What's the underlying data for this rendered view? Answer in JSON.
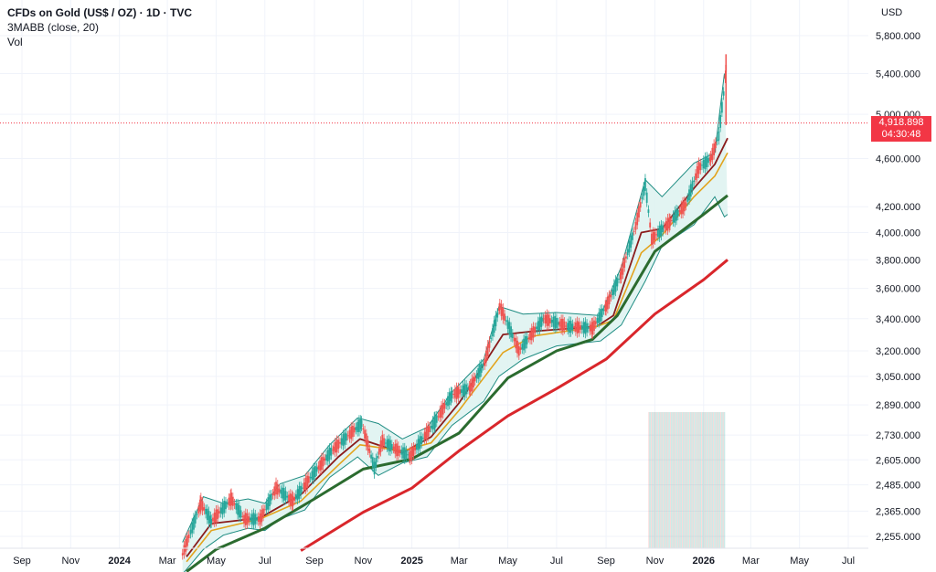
{
  "header": {
    "title": "CFDs on Gold (US$ / OZ) · 1D · TVC",
    "indicator": "3MABB (close, 20)",
    "volume_label": "Vol"
  },
  "currency": "USD",
  "current_price": {
    "value": "4,918.898",
    "countdown": "04:30:48"
  },
  "colors": {
    "price_line": "#f23645",
    "band_fill": "#dff3f1",
    "band_line": "#1e8c82",
    "ma_short": "#8a1c1c",
    "ma_mid": "#e2a31c",
    "ma_long": "#2b6b2f",
    "ma_longest": "#d9262b",
    "up_candle": "#26a69a",
    "down_candle": "#ef5350"
  },
  "chart_data": {
    "type": "line",
    "scale": "log",
    "ylim": [
      2200,
      6000
    ],
    "xlim": [
      "2023-08-15",
      "2026-07-31"
    ],
    "y_ticks": [
      {
        "value": 5800,
        "label": "5,800.000"
      },
      {
        "value": 5400,
        "label": "5,400.000"
      },
      {
        "value": 5000,
        "label": "5,000.000"
      },
      {
        "value": 4600,
        "label": "4,600.000"
      },
      {
        "value": 4200,
        "label": "4,200.000"
      },
      {
        "value": 4000,
        "label": "4,000.000"
      },
      {
        "value": 3800,
        "label": "3,800.000"
      },
      {
        "value": 3600,
        "label": "3,600.000"
      },
      {
        "value": 3400,
        "label": "3,400.000"
      },
      {
        "value": 3200,
        "label": "3,200.000"
      },
      {
        "value": 3050,
        "label": "3,050.000"
      },
      {
        "value": 2890,
        "label": "2,890.000"
      },
      {
        "value": 2730,
        "label": "2,730.000"
      },
      {
        "value": 2605,
        "label": "2,605.000"
      },
      {
        "value": 2485,
        "label": "2,485.000"
      },
      {
        "value": 2365,
        "label": "2,365.000"
      },
      {
        "value": 2255,
        "label": "2,255.000"
      }
    ],
    "x_ticks": [
      {
        "date": "2023-09-01",
        "label": "Sep"
      },
      {
        "date": "2023-11-01",
        "label": "Nov"
      },
      {
        "date": "2024-01-01",
        "label": "2024",
        "year": true
      },
      {
        "date": "2024-03-01",
        "label": "Mar"
      },
      {
        "date": "2024-05-01",
        "label": "May"
      },
      {
        "date": "2024-07-01",
        "label": "Jul"
      },
      {
        "date": "2024-09-01",
        "label": "Sep"
      },
      {
        "date": "2024-11-01",
        "label": "Nov"
      },
      {
        "date": "2025-01-01",
        "label": "2025",
        "year": true
      },
      {
        "date": "2025-03-01",
        "label": "Mar"
      },
      {
        "date": "2025-05-01",
        "label": "May"
      },
      {
        "date": "2025-07-01",
        "label": "Jul"
      },
      {
        "date": "2025-09-01",
        "label": "Sep"
      },
      {
        "date": "2025-11-01",
        "label": "Nov"
      },
      {
        "date": "2026-01-01",
        "label": "2026",
        "year": true
      },
      {
        "date": "2026-03-01",
        "label": "Mar"
      },
      {
        "date": "2026-05-01",
        "label": "May"
      },
      {
        "date": "2026-07-01",
        "label": "Jul"
      }
    ],
    "current_price": 4918.898,
    "price": [
      [
        "2024-03-20",
        2180
      ],
      [
        "2024-04-05",
        2330
      ],
      [
        "2024-04-12",
        2400
      ],
      [
        "2024-04-25",
        2320
      ],
      [
        "2024-05-20",
        2420
      ],
      [
        "2024-06-05",
        2330
      ],
      [
        "2024-06-25",
        2330
      ],
      [
        "2024-07-15",
        2470
      ],
      [
        "2024-08-05",
        2410
      ],
      [
        "2024-08-25",
        2510
      ],
      [
        "2024-09-25",
        2660
      ],
      [
        "2024-10-30",
        2790
      ],
      [
        "2024-11-15",
        2565
      ],
      [
        "2024-11-25",
        2700
      ],
      [
        "2024-12-15",
        2650
      ],
      [
        "2024-12-30",
        2625
      ],
      [
        "2025-01-30",
        2800
      ],
      [
        "2025-02-20",
        2945
      ],
      [
        "2025-03-15",
        2985
      ],
      [
        "2025-04-02",
        3130
      ],
      [
        "2025-04-21",
        3480
      ],
      [
        "2025-05-15",
        3200
      ],
      [
        "2025-06-15",
        3400
      ],
      [
        "2025-07-15",
        3350
      ],
      [
        "2025-08-15",
        3340
      ],
      [
        "2025-09-01",
        3480
      ],
      [
        "2025-09-20",
        3700
      ],
      [
        "2025-10-08",
        4050
      ],
      [
        "2025-10-20",
        4380
      ],
      [
        "2025-10-28",
        3950
      ],
      [
        "2025-11-20",
        4080
      ],
      [
        "2025-12-10",
        4220
      ],
      [
        "2025-12-26",
        4520
      ],
      [
        "2026-01-10",
        4600
      ],
      [
        "2026-01-20",
        4800
      ],
      [
        "2026-01-26",
        5200
      ],
      [
        "2026-01-29",
        5450
      ],
      [
        "2026-01-31",
        4918.898
      ]
    ],
    "series": [
      {
        "values": [
          [
            "2024-03-25",
            2170
          ],
          [
            "2024-04-25",
            2310
          ],
          [
            "2024-06-25",
            2335
          ],
          [
            "2024-08-15",
            2440
          ],
          [
            "2024-10-01",
            2620
          ],
          [
            "2024-10-28",
            2710
          ],
          [
            "2024-12-20",
            2640
          ],
          [
            "2025-01-25",
            2720
          ],
          [
            "2025-03-01",
            2900
          ],
          [
            "2025-04-25",
            3300
          ],
          [
            "2025-06-01",
            3320
          ],
          [
            "2025-08-20",
            3350
          ],
          [
            "2025-09-10",
            3420
          ],
          [
            "2025-10-15",
            4000
          ],
          [
            "2025-11-10",
            4030
          ],
          [
            "2025-12-20",
            4350
          ],
          [
            "2026-01-15",
            4550
          ],
          [
            "2026-01-31",
            4780
          ]
        ]
      },
      {
        "values": [
          [
            "2024-03-25",
            2150
          ],
          [
            "2024-04-25",
            2280
          ],
          [
            "2024-06-25",
            2330
          ],
          [
            "2024-08-15",
            2410
          ],
          [
            "2024-10-01",
            2580
          ],
          [
            "2024-10-28",
            2680
          ],
          [
            "2024-12-20",
            2650
          ],
          [
            "2025-01-25",
            2690
          ],
          [
            "2025-03-01",
            2860
          ],
          [
            "2025-04-25",
            3190
          ],
          [
            "2025-06-01",
            3290
          ],
          [
            "2025-08-20",
            3350
          ],
          [
            "2025-09-10",
            3390
          ],
          [
            "2025-10-15",
            3850
          ],
          [
            "2025-11-10",
            3980
          ],
          [
            "2025-12-20",
            4280
          ],
          [
            "2026-01-15",
            4450
          ],
          [
            "2026-01-31",
            4650
          ]
        ]
      },
      {
        "values": [
          [
            "2024-03-25",
            2110
          ],
          [
            "2024-05-01",
            2200
          ],
          [
            "2024-07-01",
            2290
          ],
          [
            "2024-09-01",
            2420
          ],
          [
            "2024-11-01",
            2560
          ],
          [
            "2025-01-01",
            2610
          ],
          [
            "2025-03-01",
            2740
          ],
          [
            "2025-05-01",
            3040
          ],
          [
            "2025-07-01",
            3200
          ],
          [
            "2025-08-15",
            3270
          ],
          [
            "2025-09-15",
            3420
          ],
          [
            "2025-11-01",
            3860
          ],
          [
            "2026-01-01",
            4140
          ],
          [
            "2026-01-31",
            4290
          ]
        ]
      },
      {
        "values": [
          [
            "2024-08-15",
            2195
          ],
          [
            "2024-11-01",
            2360
          ],
          [
            "2025-01-01",
            2470
          ],
          [
            "2025-03-01",
            2650
          ],
          [
            "2025-05-01",
            2830
          ],
          [
            "2025-07-01",
            2980
          ],
          [
            "2025-09-01",
            3150
          ],
          [
            "2025-11-01",
            3430
          ],
          [
            "2026-01-01",
            3660
          ],
          [
            "2026-01-31",
            3800
          ]
        ]
      }
    ],
    "bands": {
      "upper": [
        [
          "2024-03-20",
          2230
        ],
        [
          "2024-04-15",
          2430
        ],
        [
          "2024-05-10",
          2400
        ],
        [
          "2024-06-10",
          2420
        ],
        [
          "2024-07-01",
          2400
        ],
        [
          "2024-07-20",
          2490
        ],
        [
          "2024-08-20",
          2530
        ],
        [
          "2024-09-20",
          2680
        ],
        [
          "2024-10-25",
          2820
        ],
        [
          "2024-11-20",
          2790
        ],
        [
          "2024-12-20",
          2710
        ],
        [
          "2025-01-20",
          2770
        ],
        [
          "2025-02-20",
          2960
        ],
        [
          "2025-04-01",
          3150
        ],
        [
          "2025-04-20",
          3480
        ],
        [
          "2025-05-20",
          3430
        ],
        [
          "2025-07-01",
          3440
        ],
        [
          "2025-08-25",
          3420
        ],
        [
          "2025-09-20",
          3750
        ],
        [
          "2025-10-20",
          4420
        ],
        [
          "2025-11-10",
          4280
        ],
        [
          "2025-12-20",
          4560
        ],
        [
          "2026-01-15",
          4650
        ],
        [
          "2026-01-27",
          5400
        ]
      ],
      "lower": [
        [
          "2024-03-20",
          2100
        ],
        [
          "2024-04-15",
          2200
        ],
        [
          "2024-05-10",
          2260
        ],
        [
          "2024-06-10",
          2290
        ],
        [
          "2024-07-01",
          2280
        ],
        [
          "2024-07-20",
          2330
        ],
        [
          "2024-08-20",
          2370
        ],
        [
          "2024-09-20",
          2520
        ],
        [
          "2024-10-25",
          2620
        ],
        [
          "2024-11-20",
          2530
        ],
        [
          "2024-12-20",
          2590
        ],
        [
          "2025-01-20",
          2620
        ],
        [
          "2025-02-20",
          2780
        ],
        [
          "2025-04-01",
          2910
        ],
        [
          "2025-04-20",
          3050
        ],
        [
          "2025-05-20",
          3150
        ],
        [
          "2025-07-01",
          3230
        ],
        [
          "2025-08-25",
          3260
        ],
        [
          "2025-09-20",
          3360
        ],
        [
          "2025-10-20",
          3650
        ],
        [
          "2025-11-10",
          3900
        ],
        [
          "2025-12-20",
          4060
        ],
        [
          "2026-01-15",
          4280
        ],
        [
          "2026-01-27",
          4120
        ],
        [
          "2026-01-31",
          4140
        ]
      ]
    },
    "volume_window": [
      "2025-10-24",
      "2026-01-27"
    ]
  }
}
